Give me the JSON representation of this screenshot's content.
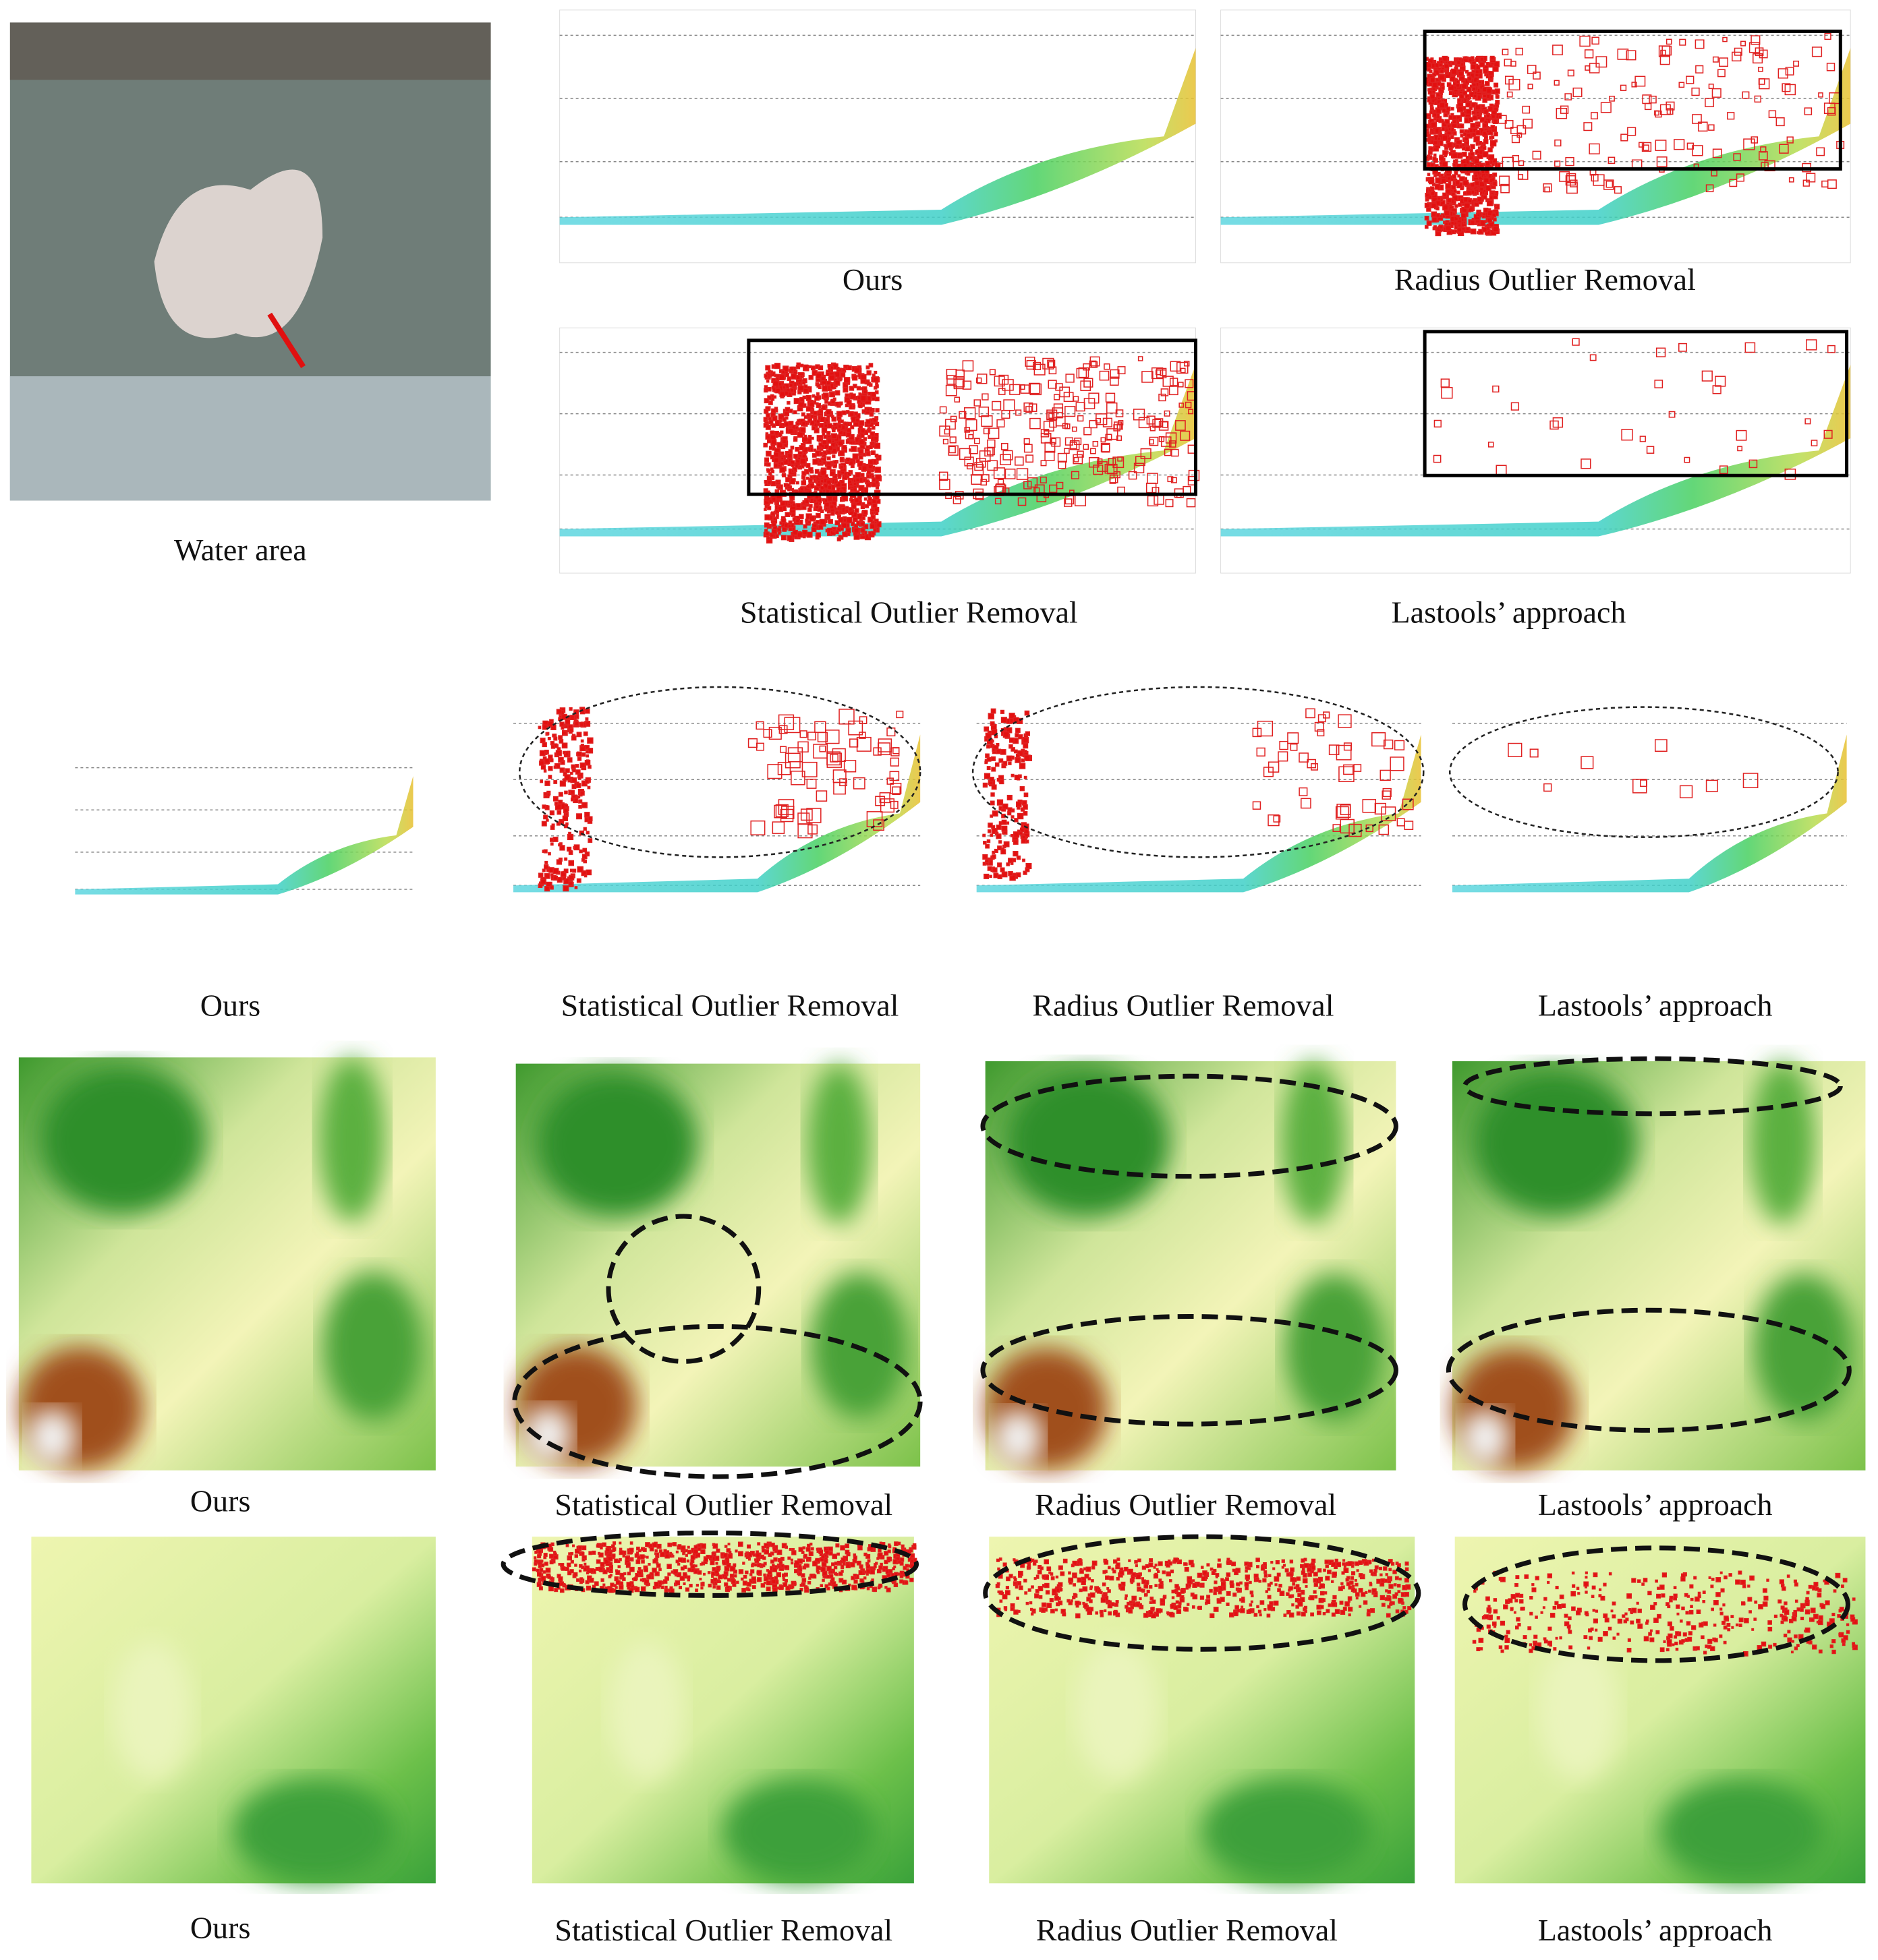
{
  "panels": [
    {
      "caption": "Water area"
    },
    {
      "caption": "Ours"
    },
    {
      "caption": "Radius Outlier Removal"
    },
    {
      "caption": "Statistical Outlier Removal"
    },
    {
      "caption": "Lastools’ approach"
    },
    {
      "caption": "Ours"
    },
    {
      "caption": "Statistical Outlier Removal"
    },
    {
      "caption": "Radius Outlier Removal"
    },
    {
      "caption": "Lastools’ approach"
    },
    {
      "caption": "Ours"
    },
    {
      "caption": "Statistical Outlier Removal"
    },
    {
      "caption": "Radius Outlier Removal"
    },
    {
      "caption": "Lastools’ approach"
    },
    {
      "caption": "Ours"
    },
    {
      "caption": "Statistical Outlier Removal"
    },
    {
      "caption": "Radius Outlier Removal"
    },
    {
      "caption": "Lastools’ approach"
    }
  ]
}
